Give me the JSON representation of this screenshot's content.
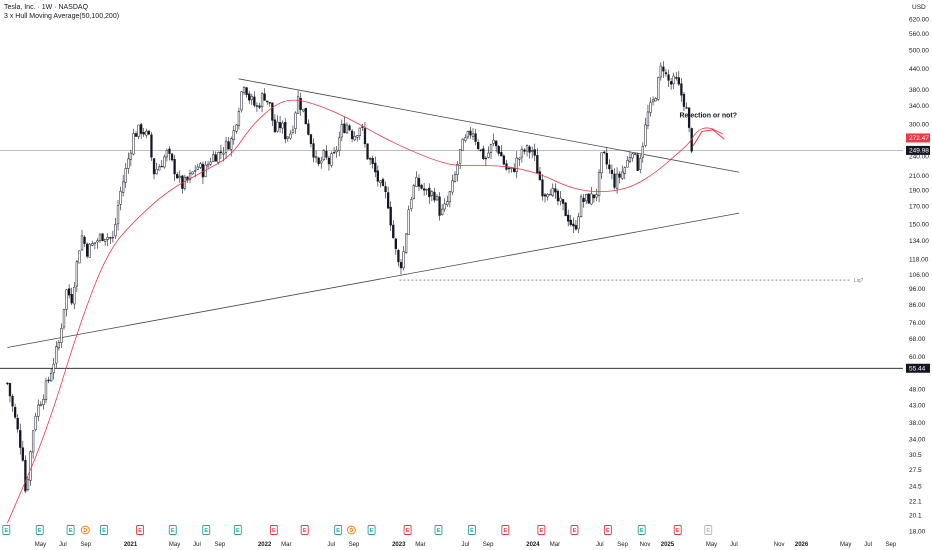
{
  "header": {
    "title": "Tesla, Inc. · 1W · NASDAQ",
    "indicator": "3 x Hull Moving Average(50,100,200)"
  },
  "colors": {
    "up": "#131722",
    "down": "#131722",
    "hma": "#f23645",
    "trend": "#434651",
    "axis_text": "#131722",
    "price_badge": "#131722",
    "hma_badge": "#f23645",
    "earnings": "#26a69a",
    "earnings_future": "#b2b5be",
    "dividend": "#f57c00",
    "earnings_red": "#f23645"
  },
  "chart_data": {
    "type": "candlestick",
    "title": "Tesla, Inc. · 1W · NASDAQ",
    "scale": "log",
    "currency": "USD",
    "ylim": [
      18,
      620
    ],
    "y_ticks": [
      620,
      560,
      500,
      440,
      380,
      340,
      300,
      240,
      210,
      190,
      170,
      150,
      134,
      118,
      106,
      96,
      86,
      76,
      68,
      60,
      48,
      43,
      38,
      34,
      30.5,
      27.5,
      24.5,
      22.1,
      20.1,
      18
    ],
    "x_ticks": [
      {
        "label": "May",
        "date": "2020-05"
      },
      {
        "label": "Jul",
        "date": "2020-07"
      },
      {
        "label": "Sep",
        "date": "2020-09"
      },
      {
        "label": "2021",
        "date": "2021-01",
        "bold": true
      },
      {
        "label": "May",
        "date": "2021-05"
      },
      {
        "label": "Jul",
        "date": "2021-07"
      },
      {
        "label": "Sep",
        "date": "2021-09"
      },
      {
        "label": "2022",
        "date": "2022-01",
        "bold": true
      },
      {
        "label": "Mar",
        "date": "2022-03"
      },
      {
        "label": "Jul",
        "date": "2022-07"
      },
      {
        "label": "Sep",
        "date": "2022-09"
      },
      {
        "label": "2023",
        "date": "2023-01",
        "bold": true
      },
      {
        "label": "Mar",
        "date": "2023-03"
      },
      {
        "label": "Jul",
        "date": "2023-07"
      },
      {
        "label": "Sep",
        "date": "2023-09"
      },
      {
        "label": "2024",
        "date": "2024-01",
        "bold": true
      },
      {
        "label": "Mar",
        "date": "2024-03"
      },
      {
        "label": "Jul",
        "date": "2024-07"
      },
      {
        "label": "Sep",
        "date": "2024-09"
      },
      {
        "label": "Nov",
        "date": "2024-11"
      },
      {
        "label": "2025",
        "date": "2025-01",
        "bold": true
      },
      {
        "label": "May",
        "date": "2025-05"
      },
      {
        "label": "Jul",
        "date": "2025-07"
      },
      {
        "label": "Nov",
        "date": "2025-11"
      },
      {
        "label": "2026",
        "date": "2026-01",
        "bold": true
      },
      {
        "label": "May",
        "date": "2026-05"
      },
      {
        "label": "Jul",
        "date": "2026-07"
      },
      {
        "label": "Sep",
        "date": "2026-09"
      }
    ],
    "close_path": [
      [
        "2020-02-01",
        50
      ],
      [
        "2020-03-15",
        30
      ],
      [
        "2020-03-22",
        23
      ],
      [
        "2020-04-15",
        40
      ],
      [
        "2020-05-20",
        50
      ],
      [
        "2020-06-20",
        66
      ],
      [
        "2020-07-10",
        95
      ],
      [
        "2020-07-25",
        90
      ],
      [
        "2020-08-20",
        140
      ],
      [
        "2020-09-05",
        125
      ],
      [
        "2020-09-25",
        132
      ],
      [
        "2020-10-20",
        140
      ],
      [
        "2020-11-15",
        135
      ],
      [
        "2020-12-01",
        180
      ],
      [
        "2020-12-20",
        220
      ],
      [
        "2021-01-10",
        280
      ],
      [
        "2021-02-01",
        290
      ],
      [
        "2021-02-20",
        270
      ],
      [
        "2021-03-05",
        215
      ],
      [
        "2021-03-20",
        225
      ],
      [
        "2021-04-10",
        245
      ],
      [
        "2021-05-05",
        215
      ],
      [
        "2021-05-20",
        195
      ],
      [
        "2021-06-10",
        205
      ],
      [
        "2021-07-01",
        225
      ],
      [
        "2021-07-20",
        215
      ],
      [
        "2021-08-10",
        240
      ],
      [
        "2021-09-01",
        245
      ],
      [
        "2021-09-20",
        260
      ],
      [
        "2021-10-05",
        270
      ],
      [
        "2021-10-25",
        350
      ],
      [
        "2021-11-05",
        405
      ],
      [
        "2021-11-20",
        360
      ],
      [
        "2021-12-10",
        335
      ],
      [
        "2021-12-30",
        370
      ],
      [
        "2022-01-15",
        340
      ],
      [
        "2022-01-28",
        285
      ],
      [
        "2022-02-15",
        300
      ],
      [
        "2022-02-28",
        275
      ],
      [
        "2022-03-15",
        285
      ],
      [
        "2022-04-01",
        360
      ],
      [
        "2022-04-15",
        330
      ],
      [
        "2022-05-10",
        260
      ],
      [
        "2022-05-25",
        220
      ],
      [
        "2022-06-10",
        240
      ],
      [
        "2022-06-25",
        230
      ],
      [
        "2022-07-10",
        240
      ],
      [
        "2022-07-30",
        290
      ],
      [
        "2022-08-15",
        300
      ],
      [
        "2022-08-30",
        275
      ],
      [
        "2022-09-20",
        300
      ],
      [
        "2022-10-05",
        245
      ],
      [
        "2022-10-25",
        220
      ],
      [
        "2022-11-15",
        190
      ],
      [
        "2022-12-01",
        180
      ],
      [
        "2022-12-20",
        130
      ],
      [
        "2023-01-03",
        110
      ],
      [
        "2023-01-15",
        125
      ],
      [
        "2023-01-30",
        175
      ],
      [
        "2023-02-15",
        200
      ],
      [
        "2023-03-01",
        195
      ],
      [
        "2023-03-20",
        185
      ],
      [
        "2023-04-10",
        185
      ],
      [
        "2023-04-25",
        160
      ],
      [
        "2023-05-10",
        170
      ],
      [
        "2023-05-30",
        200
      ],
      [
        "2023-06-20",
        255
      ],
      [
        "2023-07-05",
        270
      ],
      [
        "2023-07-20",
        290
      ],
      [
        "2023-08-10",
        250
      ],
      [
        "2023-08-25",
        235
      ],
      [
        "2023-09-15",
        265
      ],
      [
        "2023-10-01",
        250
      ],
      [
        "2023-10-20",
        220
      ],
      [
        "2023-11-05",
        215
      ],
      [
        "2023-11-20",
        235
      ],
      [
        "2023-12-10",
        250
      ],
      [
        "2023-12-30",
        250
      ],
      [
        "2024-01-15",
        215
      ],
      [
        "2024-01-30",
        185
      ],
      [
        "2024-02-15",
        195
      ],
      [
        "2024-03-01",
        180
      ],
      [
        "2024-03-20",
        170
      ],
      [
        "2024-04-10",
        155
      ],
      [
        "2024-04-22",
        142
      ],
      [
        "2024-05-10",
        175
      ],
      [
        "2024-05-25",
        178
      ],
      [
        "2024-06-10",
        180
      ],
      [
        "2024-06-25",
        190
      ],
      [
        "2024-07-08",
        245
      ],
      [
        "2024-07-25",
        220
      ],
      [
        "2024-08-10",
        200
      ],
      [
        "2024-08-25",
        210
      ],
      [
        "2024-09-10",
        225
      ],
      [
        "2024-09-28",
        255
      ],
      [
        "2024-10-10",
        220
      ],
      [
        "2024-10-25",
        260
      ],
      [
        "2024-11-08",
        320
      ],
      [
        "2024-11-22",
        345
      ],
      [
        "2024-12-05",
        390
      ],
      [
        "2024-12-18",
        460
      ],
      [
        "2024-12-30",
        410
      ],
      [
        "2025-01-10",
        395
      ],
      [
        "2025-01-24",
        405
      ],
      [
        "2025-02-05",
        375
      ],
      [
        "2025-02-20",
        340
      ],
      [
        "2025-03-01",
        285
      ],
      [
        "2025-03-10",
        250
      ]
    ],
    "hma_path": [
      [
        "2020-02-01",
        19
      ],
      [
        "2020-05-15",
        35
      ],
      [
        "2020-08-15",
        75
      ],
      [
        "2020-11-01",
        125
      ],
      [
        "2021-01-15",
        155
      ],
      [
        "2021-04-15",
        190
      ],
      [
        "2021-07-15",
        215
      ],
      [
        "2021-10-01",
        240
      ],
      [
        "2021-11-20",
        290
      ],
      [
        "2022-01-10",
        330
      ],
      [
        "2022-02-20",
        352
      ],
      [
        "2022-04-01",
        355
      ],
      [
        "2022-05-15",
        345
      ],
      [
        "2022-07-15",
        325
      ],
      [
        "2022-09-15",
        300
      ],
      [
        "2022-11-15",
        275
      ],
      [
        "2023-01-15",
        255
      ],
      [
        "2023-04-01",
        235
      ],
      [
        "2023-06-01",
        225
      ],
      [
        "2023-08-01",
        225
      ],
      [
        "2023-10-01",
        225
      ],
      [
        "2023-12-01",
        220
      ],
      [
        "2024-02-01",
        210
      ],
      [
        "2024-04-01",
        195
      ],
      [
        "2024-06-01",
        188
      ],
      [
        "2024-08-01",
        188
      ],
      [
        "2024-10-01",
        195
      ],
      [
        "2024-12-01",
        215
      ],
      [
        "2025-01-20",
        240
      ],
      [
        "2025-03-01",
        262
      ],
      [
        "2025-03-20",
        285
      ],
      [
        "2025-04-20",
        295
      ],
      [
        "2025-06-01",
        280
      ]
    ],
    "trendlines": [
      {
        "from": [
          "2020-02-01",
          64
        ],
        "to": [
          "2025-07-15",
          162
        ]
      },
      {
        "from": [
          "2021-10-22",
          410
        ],
        "to": [
          "2025-07-15",
          215
        ]
      }
    ],
    "dashed_level": {
      "from": [
        "2023-01-03",
        102
      ],
      "to": [
        "2026-05-15",
        102
      ],
      "label": "Liq?"
    },
    "horizontal_levels": [
      {
        "price": 249.98,
        "label": "249.98",
        "style": "thin"
      },
      {
        "price": 55.44,
        "label": "55.44",
        "style": "solid"
      }
    ],
    "hma_label": "272.47",
    "hma_value": 272.47,
    "price_label": "249.98",
    "price_value": 249.98,
    "annotation": {
      "text": "Rejection or not?",
      "date": "2025-04-20",
      "price": 318
    },
    "projection": [
      [
        "2025-03-12",
        258
      ],
      [
        "2025-04-05",
        285
      ],
      [
        "2025-05-05",
        288
      ],
      [
        "2025-06-05",
        270
      ]
    ],
    "events": [
      {
        "date": "2020-01-29",
        "type": "E"
      },
      {
        "date": "2020-04-29",
        "type": "E"
      },
      {
        "date": "2020-07-22",
        "type": "E"
      },
      {
        "date": "2020-08-31",
        "type": "D"
      },
      {
        "date": "2020-10-21",
        "type": "E"
      },
      {
        "date": "2021-01-27",
        "type": "E"
      },
      {
        "date": "2021-04-26",
        "type": "E"
      },
      {
        "date": "2021-07-26",
        "type": "E"
      },
      {
        "date": "2021-10-20",
        "type": "E"
      },
      {
        "date": "2022-01-26",
        "type": "E"
      },
      {
        "date": "2022-04-20",
        "type": "E"
      },
      {
        "date": "2022-07-20",
        "type": "E"
      },
      {
        "date": "2022-08-25",
        "type": "D"
      },
      {
        "date": "2022-10-19",
        "type": "E"
      },
      {
        "date": "2023-01-25",
        "type": "E"
      },
      {
        "date": "2023-04-19",
        "type": "E"
      },
      {
        "date": "2023-07-19",
        "type": "E"
      },
      {
        "date": "2023-10-18",
        "type": "E"
      },
      {
        "date": "2024-01-24",
        "type": "E"
      },
      {
        "date": "2024-04-23",
        "type": "E"
      },
      {
        "date": "2024-07-23",
        "type": "E"
      },
      {
        "date": "2024-10-23",
        "type": "E"
      },
      {
        "date": "2025-01-29",
        "type": "E"
      },
      {
        "date": "2025-04-22",
        "type": "E",
        "future": true
      }
    ]
  }
}
